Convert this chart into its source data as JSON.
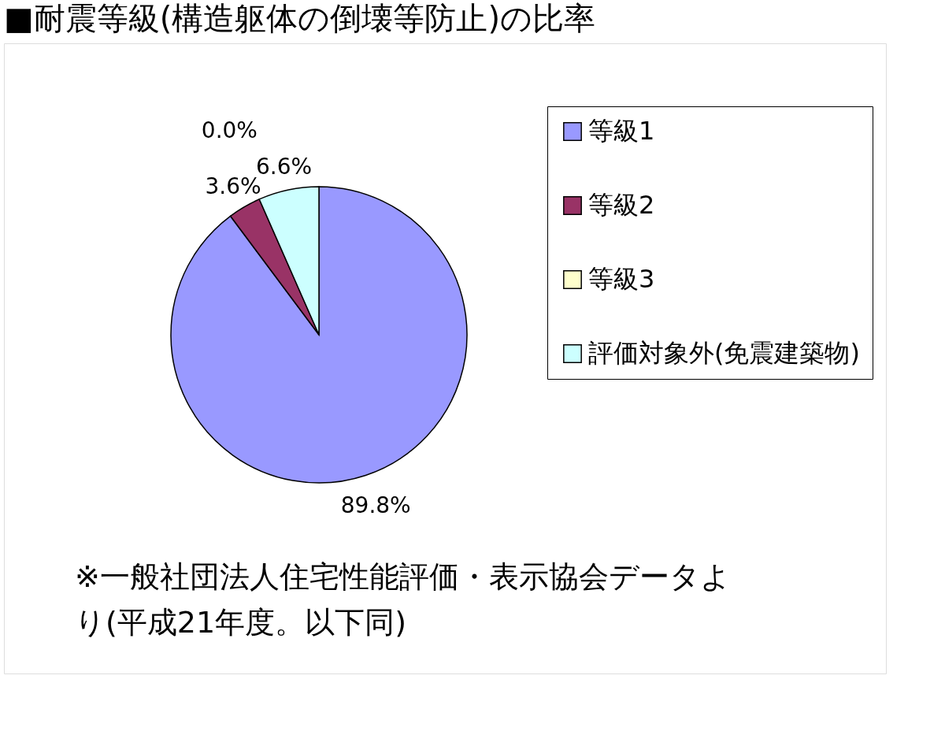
{
  "chart_data": {
    "type": "pie",
    "title": "■耐震等級(構造躯体の倒壊等防止)の比率",
    "categories": [
      "等級1",
      "等級2",
      "等級3",
      "評価対象外(免震建築物)"
    ],
    "values": [
      89.8,
      3.6,
      0.0,
      6.6
    ],
    "colors": [
      "#9999ff",
      "#993366",
      "#ffffcc",
      "#ccffff"
    ],
    "value_labels": [
      "89.8%",
      "3.6%",
      "0.0%",
      "6.6%"
    ],
    "data_labels": true,
    "legend": "right",
    "annotations": [
      "※一般社団法人住宅性能評価・表示協会データより(平成21年度。以下同)"
    ]
  }
}
